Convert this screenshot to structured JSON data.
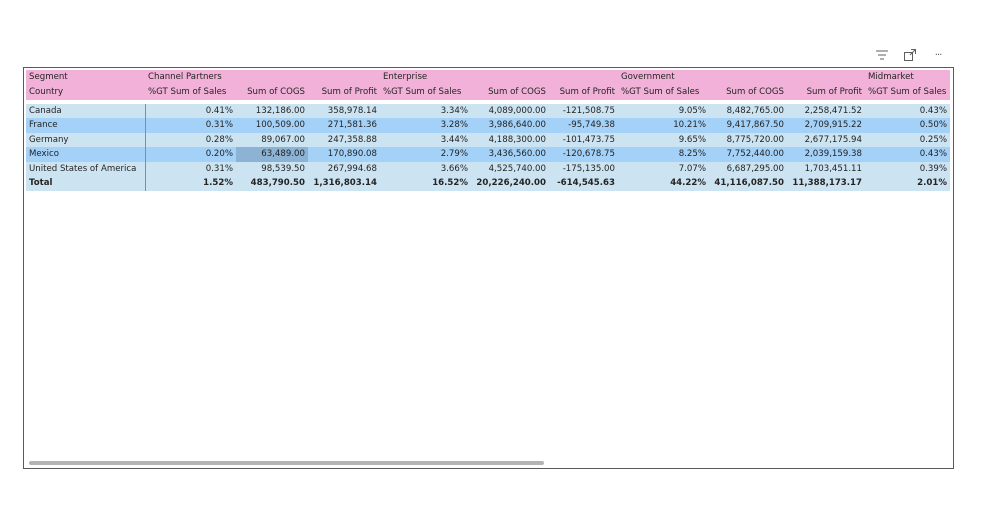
{
  "toolbar": {
    "icons": [
      "filter-icon",
      "focus-mode-icon",
      "more-options-icon"
    ],
    "more_glyph": "···"
  },
  "colors": {
    "header_bg": "#f1b1d8",
    "row_light": "#cce3f2",
    "row_dark": "#a3d1f8",
    "selected_cell": "#8cb2d4"
  },
  "matrix": {
    "row_header_top": "Segment",
    "row_header_bottom": "Country",
    "segments": [
      "Channel Partners",
      "Enterprise",
      "Government",
      "Midmarket"
    ],
    "measures": [
      "%GT Sum of Sales",
      "Sum of COGS",
      "Sum of Profit",
      "%GT Sum of Sales",
      "Sum of COGS",
      "Sum of Profit",
      "%GT Sum of Sales",
      "Sum of COGS",
      "Sum of Profit",
      "%GT Sum of Sales"
    ],
    "rows": [
      {
        "country": "Canada",
        "values": [
          "0.41%",
          "132,186.00",
          "358,978.14",
          "3.34%",
          "4,089,000.00",
          "-121,508.75",
          "9.05%",
          "8,482,765.00",
          "2,258,471.52",
          "0.43%"
        ]
      },
      {
        "country": "France",
        "values": [
          "0.31%",
          "100,509.00",
          "271,581.36",
          "3.28%",
          "3,986,640.00",
          "-95,749.38",
          "10.21%",
          "9,417,867.50",
          "2,709,915.22",
          "0.50%"
        ]
      },
      {
        "country": "Germany",
        "values": [
          "0.28%",
          "89,067.00",
          "247,358.88",
          "3.44%",
          "4,188,300.00",
          "-101,473.75",
          "9.65%",
          "8,775,720.00",
          "2,677,175.94",
          "0.25%"
        ]
      },
      {
        "country": "Mexico",
        "values": [
          "0.20%",
          "63,489.00",
          "170,890.08",
          "2.79%",
          "3,436,560.00",
          "-120,678.75",
          "8.25%",
          "7,752,440.00",
          "2,039,159.38",
          "0.43%"
        ]
      },
      {
        "country": "United States of America",
        "values": [
          "0.31%",
          "98,539.50",
          "267,994.68",
          "3.66%",
          "4,525,740.00",
          "-175,135.00",
          "7.07%",
          "6,687,295.00",
          "1,703,451.11",
          "0.39%"
        ]
      }
    ],
    "total": {
      "label": "Total",
      "values": [
        "1.52%",
        "483,790.50",
        "1,316,803.14",
        "16.52%",
        "20,226,240.00",
        "-614,545.63",
        "44.22%",
        "41,116,087.50",
        "11,388,173.17",
        "2.01%"
      ]
    }
  }
}
